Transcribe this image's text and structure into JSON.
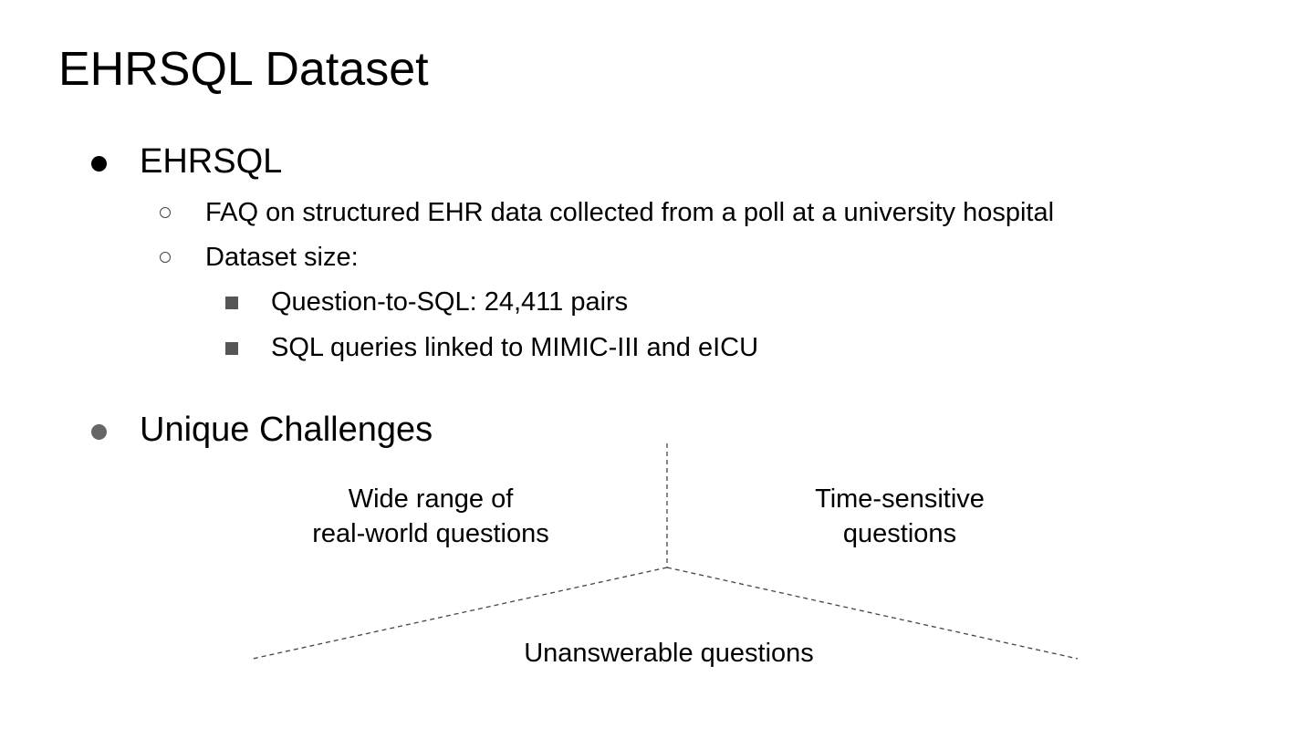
{
  "slide": {
    "title": "EHRSQL Dataset",
    "bullets": {
      "b1": {
        "text": "EHRSQL"
      },
      "b1_1": {
        "text": "FAQ on structured EHR data collected from a poll at a university hospital"
      },
      "b1_2": {
        "text": "Dataset size:"
      },
      "b1_2_1": {
        "text": "Question-to-SQL: 24,411 pairs"
      },
      "b1_2_2": {
        "text": "SQL queries linked to MIMIC-III and eICU"
      },
      "b2": {
        "text": "Unique Challenges"
      }
    },
    "challenges": {
      "left_line1": "Wide range of",
      "left_line2": "real-world questions",
      "right_line1": "Time-sensitive",
      "right_line2": "questions",
      "bottom": "Unanswerable questions"
    }
  }
}
